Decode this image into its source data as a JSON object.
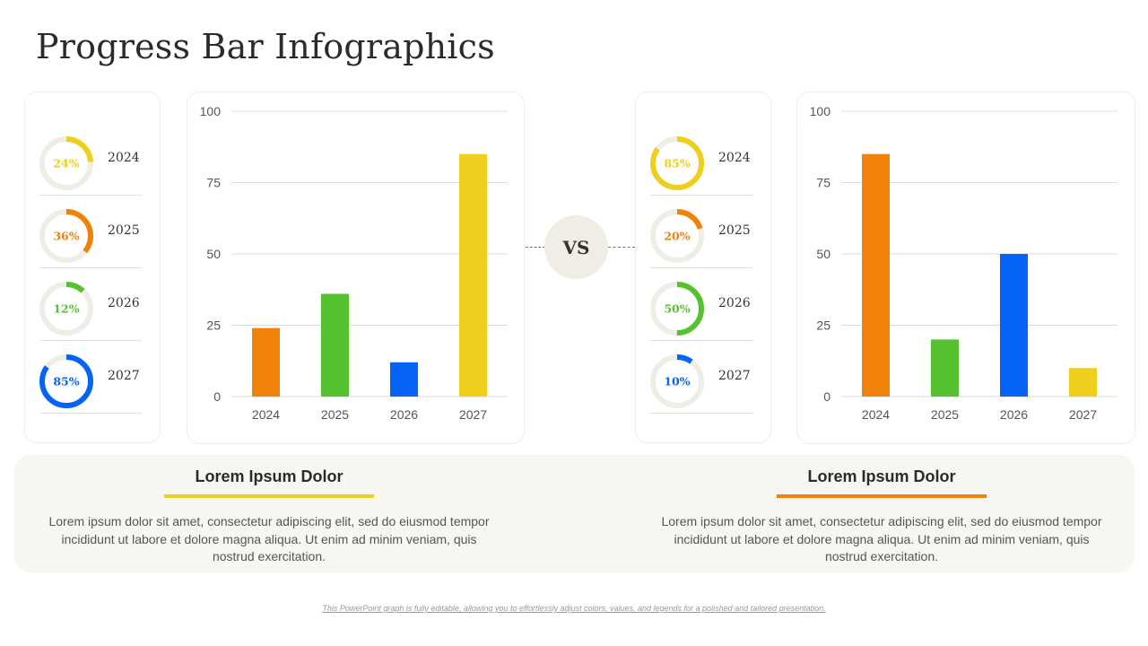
{
  "title": "Progress Bar Infographics",
  "vs_label": "VS",
  "left": {
    "rings": [
      {
        "year": "2024",
        "label": "24%",
        "value": 24,
        "color": "#EFCF1E"
      },
      {
        "year": "2025",
        "label": "36%",
        "value": 36,
        "color": "#F0820A"
      },
      {
        "year": "2026",
        "label": "12%",
        "value": 12,
        "color": "#54C12E"
      },
      {
        "year": "2027",
        "label": "85%",
        "value": 85,
        "color": "#0563F5"
      }
    ],
    "heading": "Lorem Ipsum Dolor",
    "underline_color": "#EFCF1E",
    "body": "Lorem ipsum dolor sit amet, consectetur adipiscing elit, sed do eiusmod tempor incididunt ut labore et dolore magna aliqua. Ut enim ad minim veniam, quis nostrud exercitation."
  },
  "right": {
    "rings": [
      {
        "year": "2024",
        "label": "85%",
        "value": 85,
        "color": "#EFCF1E"
      },
      {
        "year": "2025",
        "label": "20%",
        "value": 20,
        "color": "#F0820A"
      },
      {
        "year": "2026",
        "label": "50%",
        "value": 50,
        "color": "#54C12E"
      },
      {
        "year": "2027",
        "label": "10%",
        "value": 10,
        "color": "#0563F5"
      }
    ],
    "heading": "Lorem Ipsum Dolor",
    "underline_color": "#F0820A",
    "body": "Lorem ipsum dolor sit amet, consectetur adipiscing elit, sed do eiusmod tempor incididunt ut labore et dolore magna aliqua. Ut enim ad minim veniam, quis nostrud exercitation."
  },
  "ring_track_color": "#EEEDE6",
  "footer": "This PowerPoint graph is fully editable, allowing you to effortlessly adjust colors, values, and legends for a polished and tailored presentation.",
  "chart_data": [
    {
      "type": "bar",
      "categories": [
        "2024",
        "2025",
        "2026",
        "2027"
      ],
      "values": [
        24,
        36,
        12,
        85
      ],
      "colors": [
        "#F0820A",
        "#54C12E",
        "#0563F5",
        "#EFCF1E"
      ],
      "ylim": [
        0,
        100
      ],
      "yticks": [
        0,
        25,
        50,
        75,
        100
      ],
      "grid": true,
      "title": "",
      "xlabel": "",
      "ylabel": ""
    },
    {
      "type": "bar",
      "categories": [
        "2024",
        "2025",
        "2026",
        "2027"
      ],
      "values": [
        85,
        20,
        50,
        10
      ],
      "colors": [
        "#F0820A",
        "#54C12E",
        "#0563F5",
        "#EFCF1E"
      ],
      "ylim": [
        0,
        100
      ],
      "yticks": [
        0,
        25,
        50,
        75,
        100
      ],
      "grid": true,
      "title": "",
      "xlabel": "",
      "ylabel": ""
    }
  ]
}
